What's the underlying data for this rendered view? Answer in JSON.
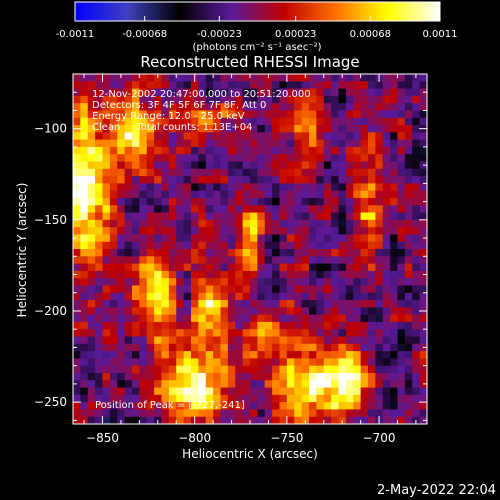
{
  "chart_data": {
    "type": "heatmap",
    "title": "Reconstructed RHESSI Image",
    "xlabel": "Heliocentric X (arcsec)",
    "ylabel": "Heliocentric Y (arcsec)",
    "xlim": [
      -866,
      -674
    ],
    "ylim": [
      -262,
      -70
    ],
    "x_ticks": [
      -850,
      -800,
      -750,
      -700
    ],
    "y_ticks": [
      -100,
      -150,
      -200,
      -250
    ],
    "colorbar": {
      "range": [
        -0.0011,
        0.0011
      ],
      "ticks": [
        -0.0011,
        -0.00068,
        -0.00023,
        0.00023,
        0.00068,
        0.0011
      ],
      "tick_labels": [
        "-0.0011",
        "-0.00068",
        "-0.00023",
        "0.00023",
        "0.00068",
        "0.0011"
      ],
      "units": "(photons cm⁻² s⁻¹ asec⁻²)",
      "colormap": [
        "#0000ff",
        "#4040c0",
        "#000000",
        "#5a1a9a",
        "#c00000",
        "#ff7000",
        "#ffff00",
        "#ffffff"
      ]
    },
    "annotations": [
      "12-Nov-2002 20:47:00.000 to 20:51:20.000",
      "Detectors: 3F 4F 5F 6F 7F 8F, Att 0",
      "Energy Range: 12.0 - 25.0 keV",
      "Clean     Total counts: 1.13E+04"
    ],
    "peak_label": "Position of Peak = [-727,-241]",
    "peak_position": [
      -727,
      -241
    ]
  },
  "footer": {
    "date": "2-May-2022 22:04"
  }
}
